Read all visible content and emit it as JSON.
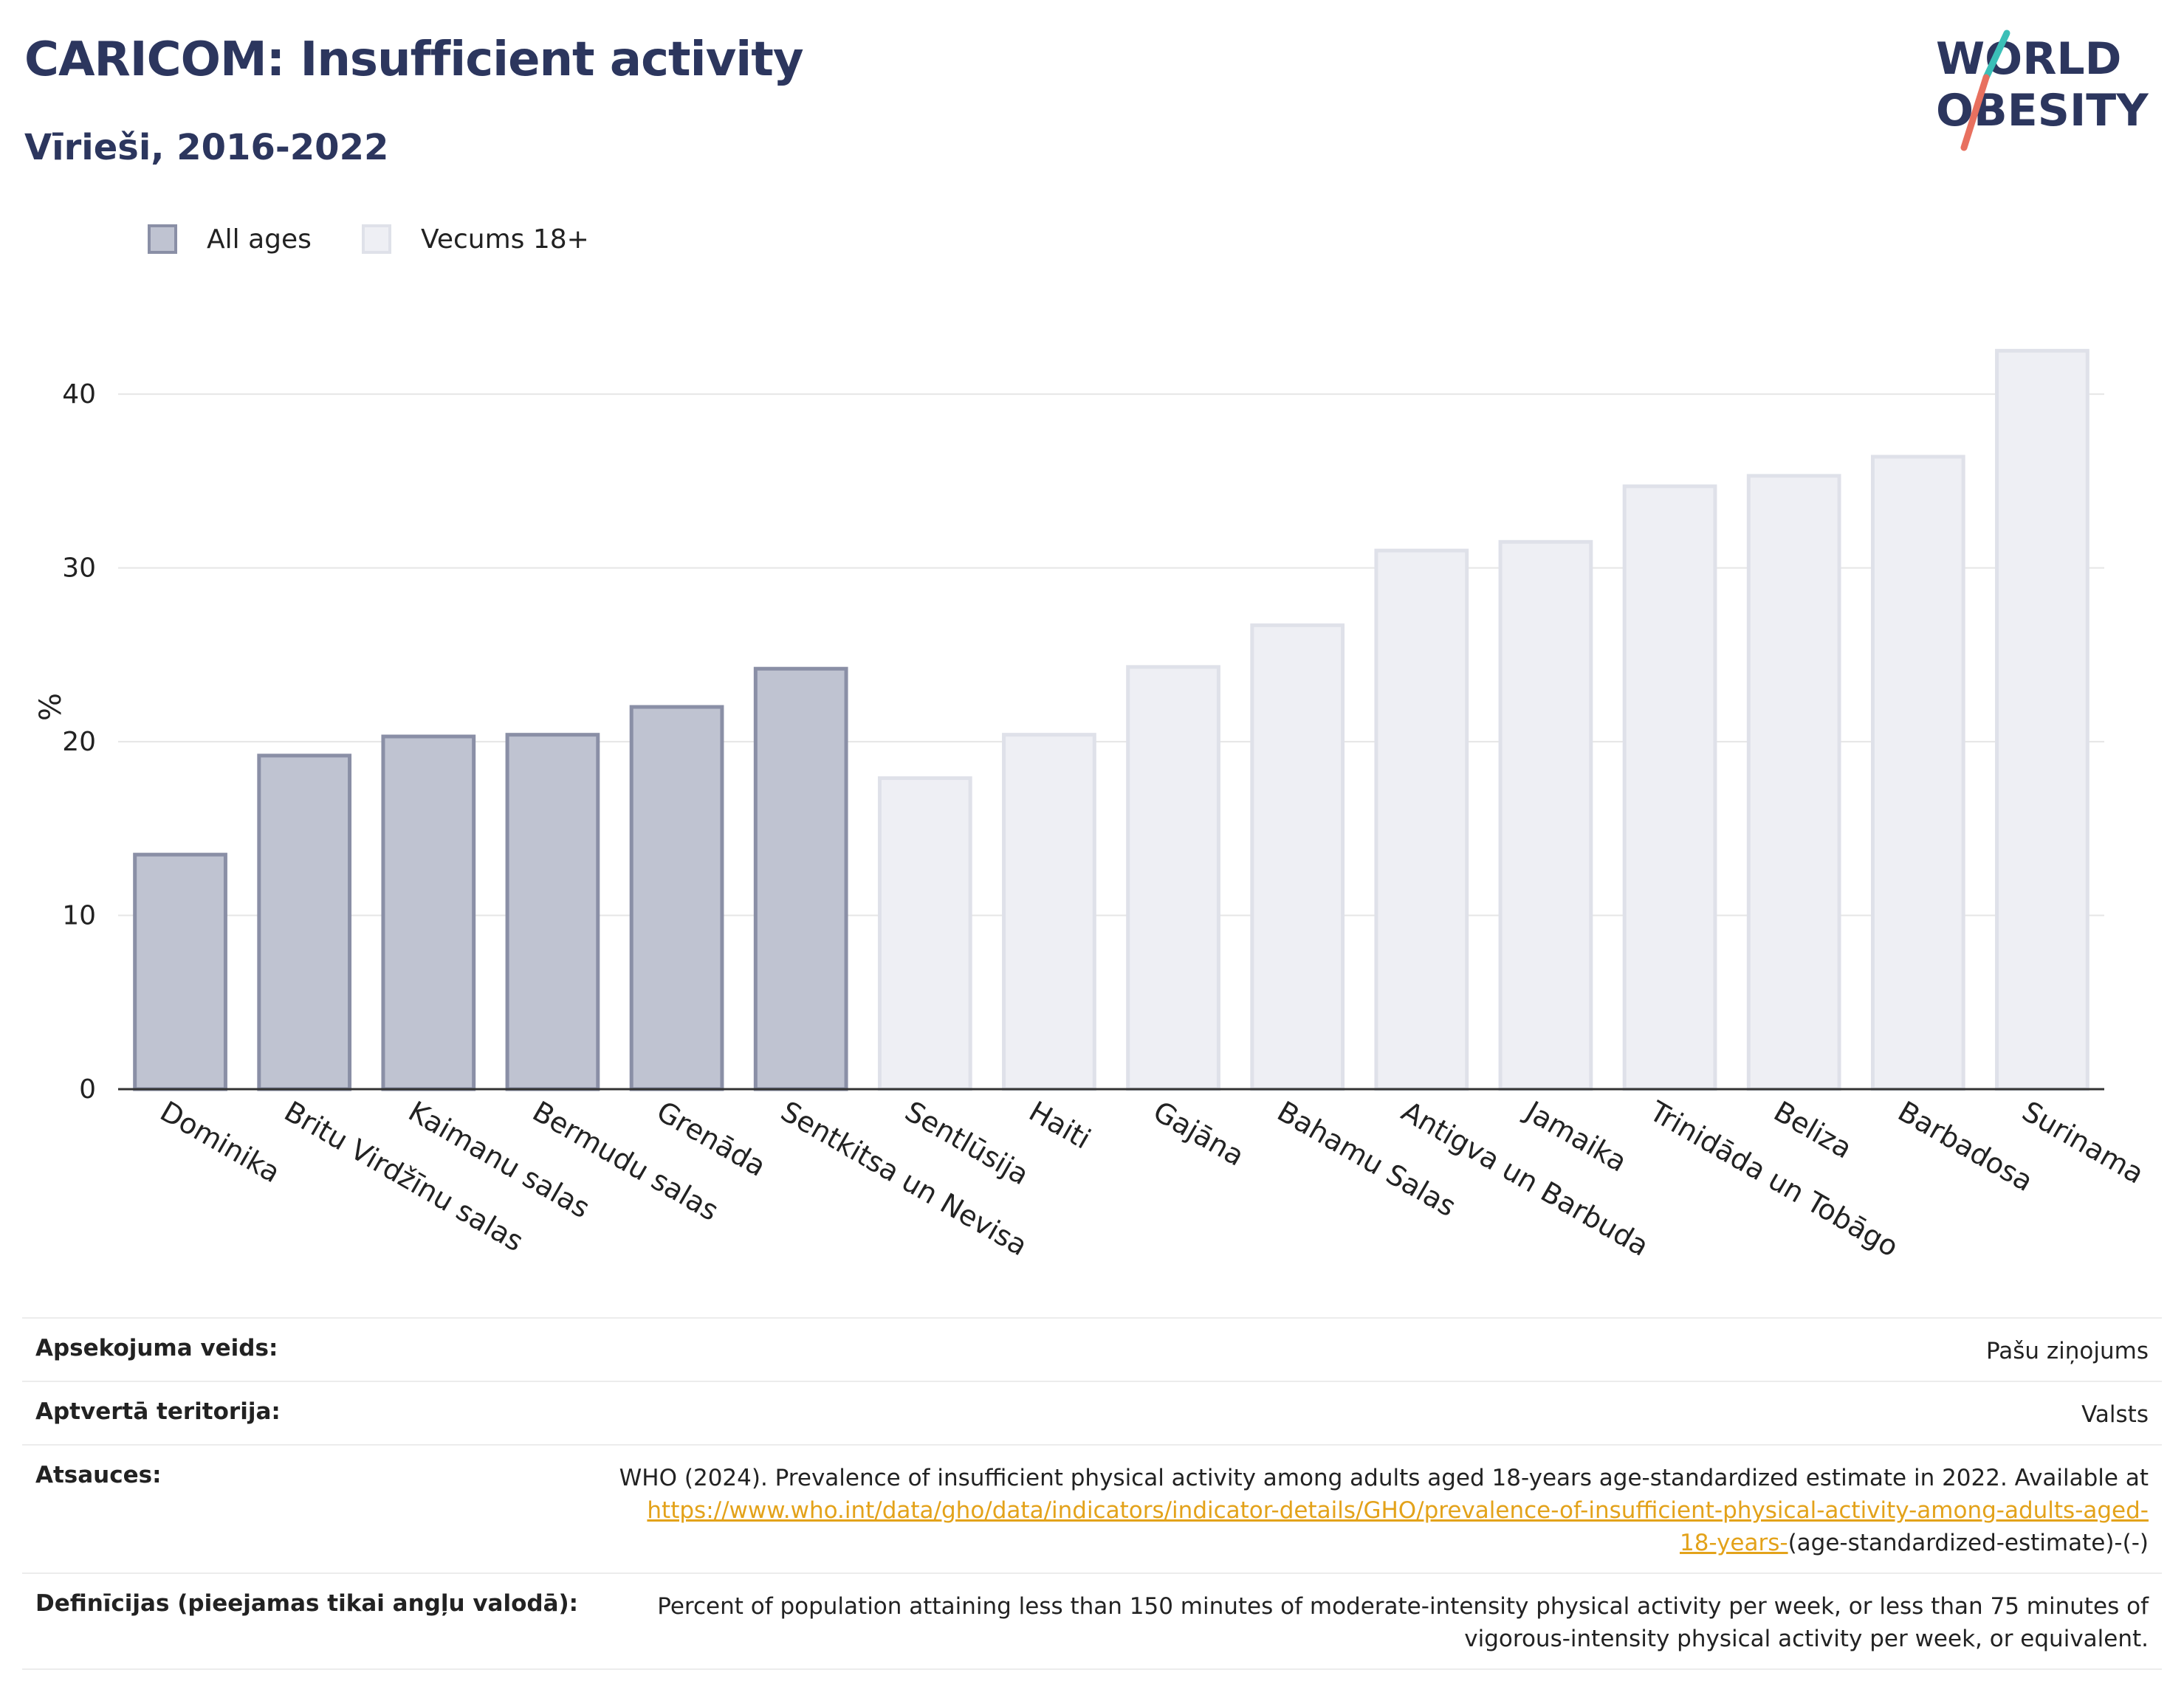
{
  "header": {
    "title": "CARICOM: Insufficient activity",
    "subtitle": "Vīrieši, 2016-2022"
  },
  "logo": {
    "text_line1": "WORLD",
    "text_line2": "OBESITY",
    "colors": {
      "text": "#2c365e",
      "slash_top": "#3bbfb7",
      "slash_bottom": "#e8705f"
    }
  },
  "legend": [
    {
      "label": "All ages",
      "fill": "#bfc3d1",
      "stroke": "#8a8fa6"
    },
    {
      "label": "Vecums 18+",
      "fill": "#eeeff4",
      "stroke": "#dfe1e9"
    }
  ],
  "chart_data": {
    "type": "bar",
    "ylabel": "%",
    "ylim": [
      0,
      44
    ],
    "yticks": [
      0,
      10,
      20,
      30,
      40
    ],
    "grid": true,
    "legend_position": "top-left",
    "categories": [
      "Dominika",
      "Britu Virdžīnu salas",
      "Kaimanu salas",
      "Bermudu salas",
      "Grenāda",
      "Sentkitsa un Nevisa",
      "Sentlūsija",
      "Haiti",
      "Gajāna",
      "Bahamu Salas",
      "Antigva un Barbuda",
      "Jamaika",
      "Trinidāda un Tobāgo",
      "Beliza",
      "Barbadosa",
      "Surinama"
    ],
    "values": [
      13.5,
      19.2,
      20.3,
      20.4,
      22.0,
      24.2,
      17.9,
      20.4,
      24.3,
      26.7,
      31.0,
      31.5,
      34.7,
      35.3,
      36.4,
      42.5
    ],
    "series_of_bar": [
      "All ages",
      "All ages",
      "All ages",
      "All ages",
      "All ages",
      "All ages",
      "Vecums 18+",
      "Vecums 18+",
      "Vecums 18+",
      "Vecums 18+",
      "Vecums 18+",
      "Vecums 18+",
      "Vecums 18+",
      "Vecums 18+",
      "Vecums 18+",
      "Vecums 18+"
    ]
  },
  "info": [
    {
      "key": "Apsekojuma veids:",
      "value": "Pašu ziņojums"
    },
    {
      "key": "Aptvertā teritorija:",
      "value": "Valsts"
    },
    {
      "key": "Atsauces:",
      "value_prefix": "WHO (2024). Prevalence of insufficient physical activity among adults aged 18-years age-standardized estimate in 2022. Available at",
      "link_text_1": "https://www.who.int/data/gho/data/indicators/indicator-details/GHO/prevalence-of-insufficient-physical-activity-among-adults-aged-",
      "link_text_2": "18-years-",
      "value_suffix": "(age-standardized-estimate)-(-)"
    },
    {
      "key": "Definīcijas (pieejamas tikai angļu valodā):",
      "value": "Percent of population attaining less than 150 minutes of moderate-intensity physical activity per week, or less than 75 minutes of vigorous-intensity physical activity per week, or equivalent."
    }
  ]
}
